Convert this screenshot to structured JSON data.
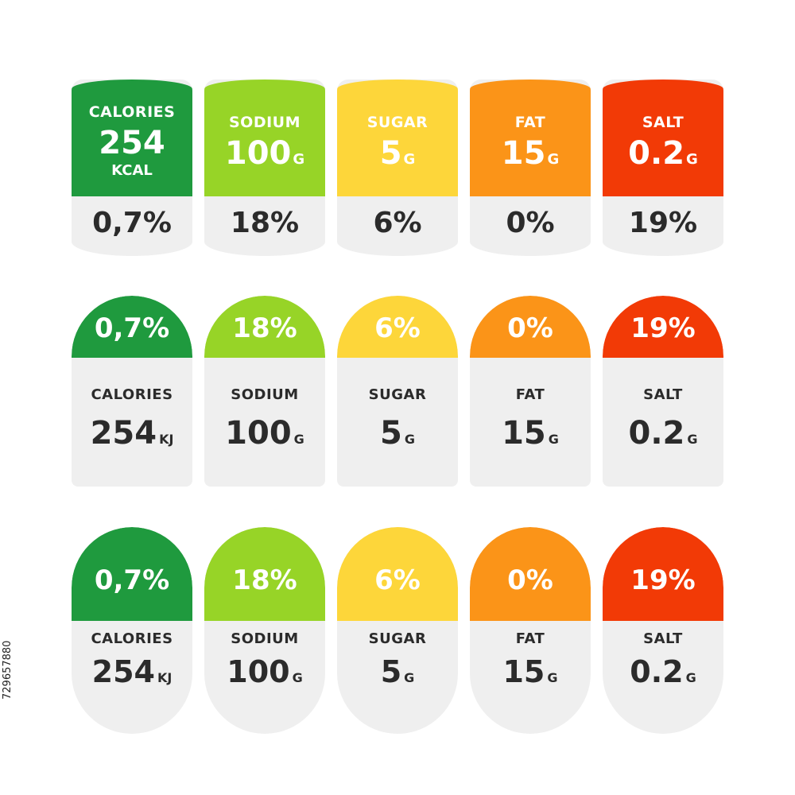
{
  "colors": {
    "green_dark": "#1f9a3e",
    "green_light": "#97d427",
    "yellow": "#fdd63a",
    "orange": "#fb9418",
    "red": "#f23a06",
    "card_bg": "#efefef",
    "text_dark": "#2b2b2b"
  },
  "row1": {
    "calories": {
      "label": "CALORIES",
      "value": "254",
      "unit": "KCAL",
      "percent": "0,7%"
    },
    "sodium": {
      "label": "SODIUM",
      "value": "100",
      "unit": "G",
      "percent": "18%"
    },
    "sugar": {
      "label": "SUGAR",
      "value": "5",
      "unit": "G",
      "percent": "6%"
    },
    "fat": {
      "label": "FAT",
      "value": "15",
      "unit": "G",
      "percent": "0%"
    },
    "salt": {
      "label": "SALT",
      "value": "0.2",
      "unit": "G",
      "percent": "19%"
    }
  },
  "row2": {
    "calories": {
      "label": "CALORIES",
      "value": "254",
      "unit": "KJ",
      "percent": "0,7%"
    },
    "sodium": {
      "label": "SODIUM",
      "value": "100",
      "unit": "G",
      "percent": "18%"
    },
    "sugar": {
      "label": "SUGAR",
      "value": "5",
      "unit": "G",
      "percent": "6%"
    },
    "fat": {
      "label": "FAT",
      "value": "15",
      "unit": "G",
      "percent": "0%"
    },
    "salt": {
      "label": "SALT",
      "value": "0.2",
      "unit": "G",
      "percent": "19%"
    }
  },
  "row3": {
    "calories": {
      "label": "CALORIES",
      "value": "254",
      "unit": "KJ",
      "percent": "0,7%"
    },
    "sodium": {
      "label": "SODIUM",
      "value": "100",
      "unit": "G",
      "percent": "18%"
    },
    "sugar": {
      "label": "SUGAR",
      "value": "5",
      "unit": "G",
      "percent": "6%"
    },
    "fat": {
      "label": "FAT",
      "value": "15",
      "unit": "G",
      "percent": "0%"
    },
    "salt": {
      "label": "SALT",
      "value": "0.2",
      "unit": "G",
      "percent": "19%"
    }
  },
  "stock_id": "729657880"
}
